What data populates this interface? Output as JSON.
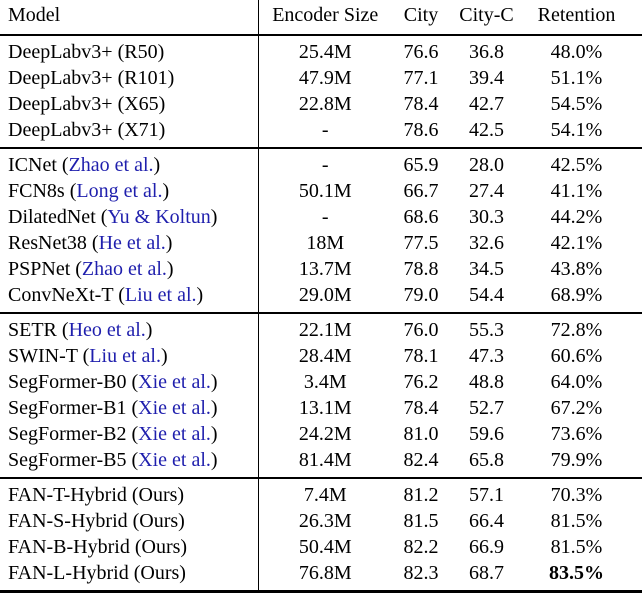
{
  "colors": {
    "citation_link": "#1f1fad",
    "text": "#000000",
    "background": "#ffffff"
  },
  "table": {
    "headers": [
      "Model",
      "Encoder Size",
      "City",
      "City-C",
      "Retention"
    ],
    "groups": [
      {
        "rows": [
          {
            "model": "DeepLabv3+ (R50)",
            "citation": null,
            "encoder_size": "25.4M",
            "city": "76.6",
            "city_c": "36.8",
            "retention": "48.0%"
          },
          {
            "model": "DeepLabv3+ (R101)",
            "citation": null,
            "encoder_size": "47.9M",
            "city": "77.1",
            "city_c": "39.4",
            "retention": "51.1%"
          },
          {
            "model": "DeepLabv3+ (X65)",
            "citation": null,
            "encoder_size": "22.8M",
            "city": "78.4",
            "city_c": "42.7",
            "retention": "54.5%"
          },
          {
            "model": "DeepLabv3+ (X71)",
            "citation": null,
            "encoder_size": "-",
            "city": "78.6",
            "city_c": "42.5",
            "retention": "54.1%"
          }
        ]
      },
      {
        "rows": [
          {
            "model": "ICNet",
            "citation": "Zhao et al.",
            "encoder_size": "-",
            "city": "65.9",
            "city_c": "28.0",
            "retention": "42.5%"
          },
          {
            "model": "FCN8s",
            "citation": "Long et al.",
            "encoder_size": "50.1M",
            "city": "66.7",
            "city_c": "27.4",
            "retention": "41.1%"
          },
          {
            "model": "DilatedNet",
            "citation": "Yu & Koltun",
            "encoder_size": "-",
            "city": "68.6",
            "city_c": "30.3",
            "retention": "44.2%"
          },
          {
            "model": "ResNet38",
            "citation": "He et al.",
            "encoder_size": "18M",
            "city": "77.5",
            "city_c": "32.6",
            "retention": "42.1%"
          },
          {
            "model": "PSPNet",
            "citation": "Zhao et al.",
            "encoder_size": "13.7M",
            "city": "78.8",
            "city_c": "34.5",
            "retention": "43.8%"
          },
          {
            "model": "ConvNeXt-T",
            "citation": "Liu et al.",
            "encoder_size": "29.0M",
            "city": "79.0",
            "city_c": "54.4",
            "retention": "68.9%"
          }
        ]
      },
      {
        "rows": [
          {
            "model": "SETR",
            "citation": "Heo et al.",
            "encoder_size": "22.1M",
            "city": "76.0",
            "city_c": "55.3",
            "retention": "72.8%"
          },
          {
            "model": "SWIN-T",
            "citation": "Liu et al.",
            "encoder_size": "28.4M",
            "city": "78.1",
            "city_c": "47.3",
            "retention": "60.6%"
          },
          {
            "model": "SegFormer-B0",
            "citation": "Xie et al.",
            "encoder_size": "3.4M",
            "city": "76.2",
            "city_c": "48.8",
            "retention": "64.0%"
          },
          {
            "model": "SegFormer-B1",
            "citation": "Xie et al.",
            "encoder_size": "13.1M",
            "city": "78.4",
            "city_c": "52.7",
            "retention": "67.2%"
          },
          {
            "model": "SegFormer-B2",
            "citation": "Xie et al.",
            "encoder_size": "24.2M",
            "city": "81.0",
            "city_c": "59.6",
            "retention": "73.6%"
          },
          {
            "model": "SegFormer-B5",
            "citation": "Xie et al.",
            "encoder_size": "81.4M",
            "city": "82.4",
            "city_c": "65.8",
            "retention": "79.9%"
          }
        ]
      },
      {
        "rows": [
          {
            "model": "FAN-T-Hybrid (Ours)",
            "citation": null,
            "encoder_size": "7.4M",
            "city": "81.2",
            "city_c": "57.1",
            "retention": "70.3%"
          },
          {
            "model": "FAN-S-Hybrid (Ours)",
            "citation": null,
            "encoder_size": "26.3M",
            "city": "81.5",
            "city_c": "66.4",
            "retention": "81.5%"
          },
          {
            "model": "FAN-B-Hybrid (Ours)",
            "citation": null,
            "encoder_size": "50.4M",
            "city": "82.2",
            "city_c": "66.9",
            "retention": "81.5%"
          },
          {
            "model": "FAN-L-Hybrid (Ours)",
            "citation": null,
            "encoder_size": "76.8M",
            "city": "82.3",
            "city_c": "68.7",
            "retention": "83.5%",
            "retention_bold": true
          }
        ]
      }
    ],
    "punctuation": {
      "cite_open": " (",
      "cite_close": ")"
    }
  }
}
